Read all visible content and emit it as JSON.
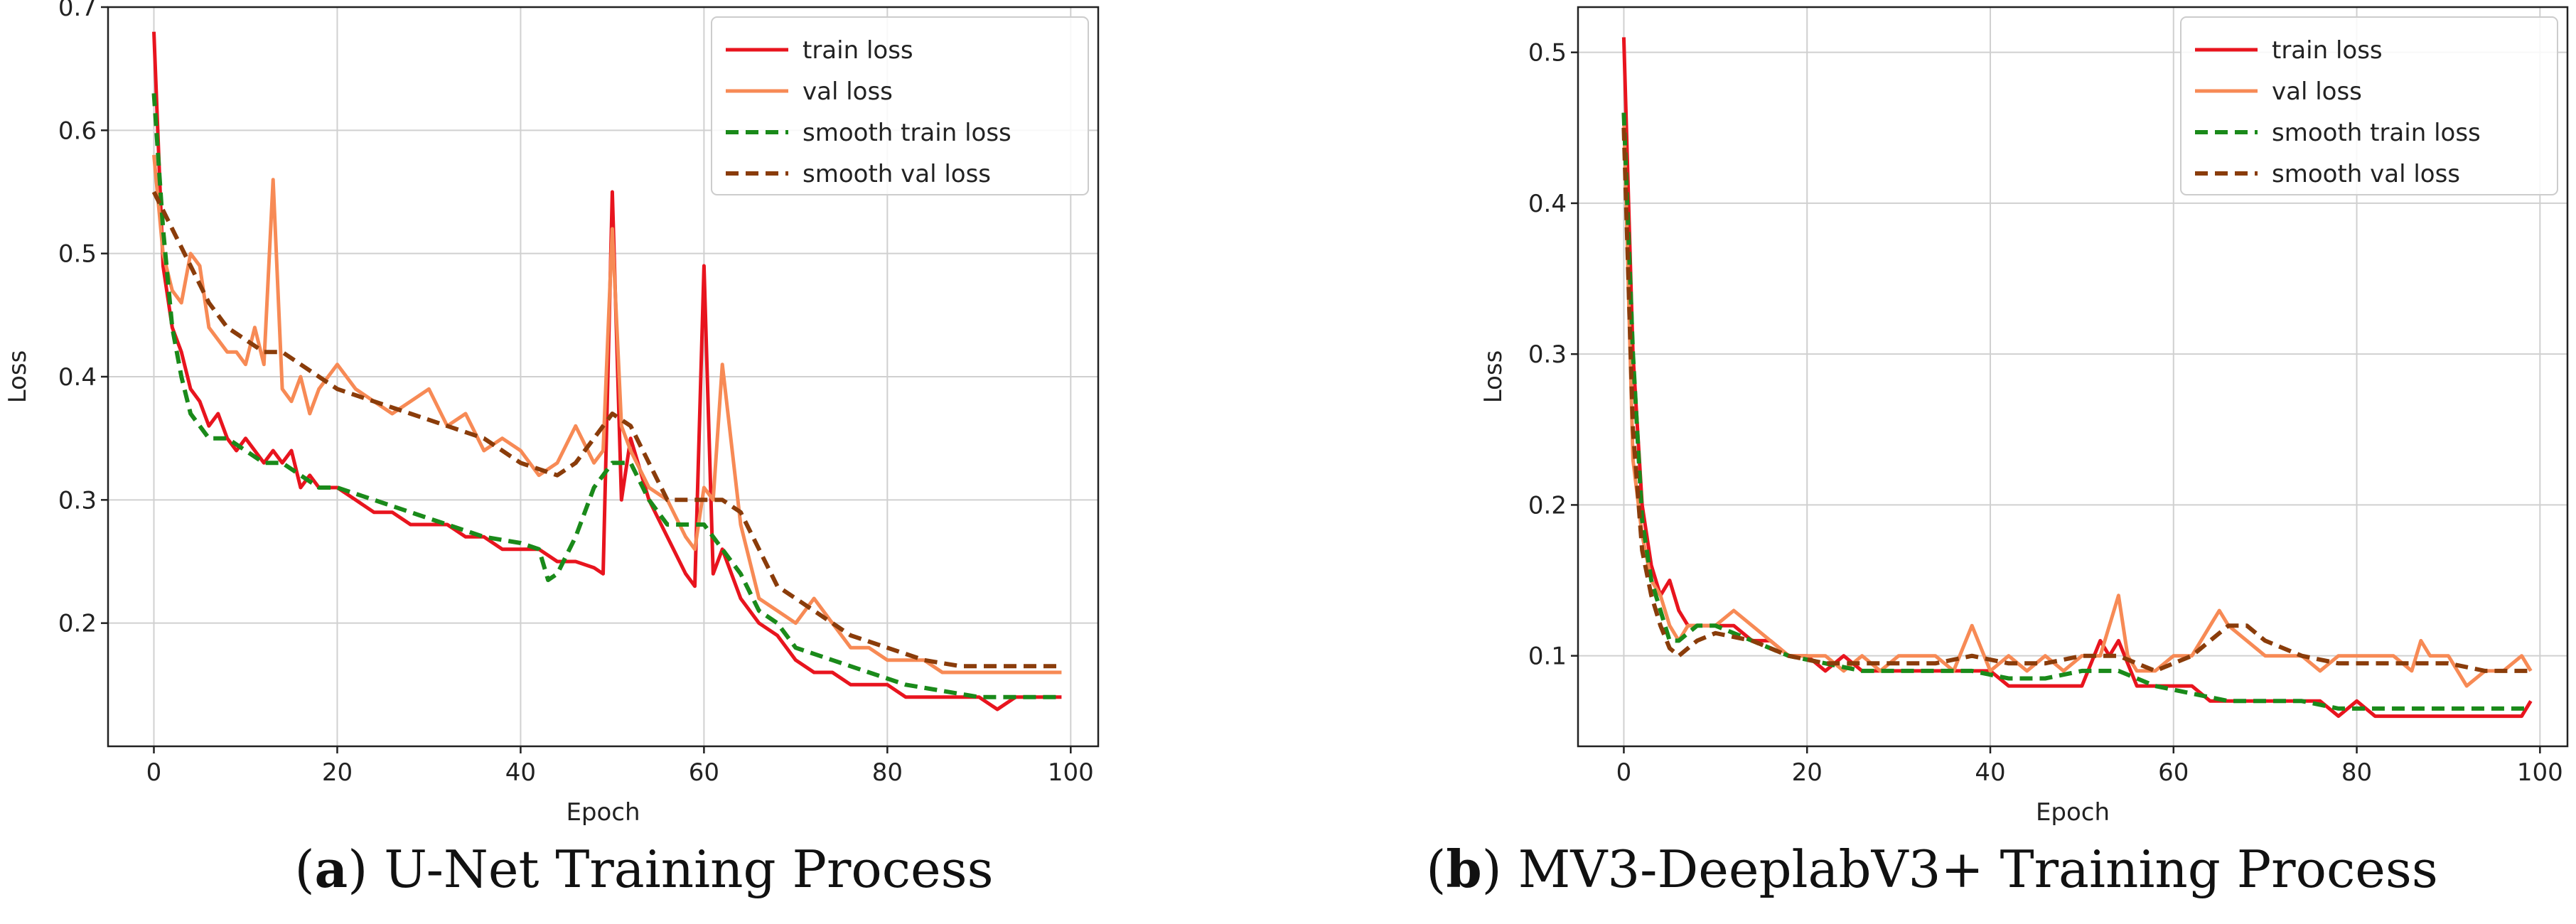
{
  "chart_data": [
    {
      "type": "line",
      "caption_letter": "a",
      "caption_text": "U-Net Training Process",
      "xlabel": "Epoch",
      "ylabel": "Loss",
      "xlim": [
        -5,
        103
      ],
      "ylim": [
        0.1,
        0.7
      ],
      "xticks": [
        0,
        20,
        40,
        60,
        80,
        100
      ],
      "yticks": [
        0.2,
        0.3,
        0.4,
        0.5,
        0.6,
        0.7
      ],
      "grid": true,
      "legend_position": "top-right",
      "series": [
        {
          "name": "train loss",
          "color": "#e8141e",
          "dash": "solid",
          "x": [
            0,
            1,
            2,
            3,
            4,
            5,
            6,
            7,
            8,
            9,
            10,
            11,
            12,
            13,
            14,
            15,
            16,
            17,
            18,
            19,
            20,
            22,
            24,
            26,
            28,
            30,
            32,
            34,
            36,
            38,
            40,
            42,
            44,
            46,
            48,
            49,
            50,
            51,
            52,
            54,
            56,
            58,
            59,
            60,
            61,
            62,
            64,
            66,
            68,
            70,
            72,
            74,
            76,
            78,
            80,
            82,
            84,
            86,
            88,
            90,
            92,
            94,
            96,
            98,
            99
          ],
          "values": [
            0.68,
            0.49,
            0.44,
            0.42,
            0.39,
            0.38,
            0.36,
            0.37,
            0.35,
            0.34,
            0.35,
            0.34,
            0.33,
            0.34,
            0.33,
            0.34,
            0.31,
            0.32,
            0.31,
            0.31,
            0.31,
            0.3,
            0.29,
            0.29,
            0.28,
            0.28,
            0.28,
            0.27,
            0.27,
            0.26,
            0.26,
            0.26,
            0.25,
            0.25,
            0.245,
            0.24,
            0.55,
            0.3,
            0.35,
            0.3,
            0.27,
            0.24,
            0.23,
            0.49,
            0.24,
            0.26,
            0.22,
            0.2,
            0.19,
            0.17,
            0.16,
            0.16,
            0.15,
            0.15,
            0.15,
            0.14,
            0.14,
            0.14,
            0.14,
            0.14,
            0.13,
            0.14,
            0.14,
            0.14,
            0.14
          ]
        },
        {
          "name": "val loss",
          "color": "#f78a55",
          "dash": "solid",
          "x": [
            0,
            1,
            2,
            3,
            4,
            5,
            6,
            7,
            8,
            9,
            10,
            11,
            12,
            13,
            14,
            15,
            16,
            17,
            18,
            19,
            20,
            22,
            24,
            26,
            28,
            30,
            32,
            34,
            36,
            38,
            40,
            42,
            44,
            46,
            48,
            49,
            50,
            51,
            52,
            54,
            56,
            58,
            59,
            60,
            61,
            62,
            64,
            66,
            68,
            70,
            72,
            74,
            76,
            78,
            80,
            82,
            84,
            86,
            88,
            90,
            92,
            94,
            96,
            98,
            99
          ],
          "values": [
            0.58,
            0.5,
            0.47,
            0.46,
            0.5,
            0.49,
            0.44,
            0.43,
            0.42,
            0.42,
            0.41,
            0.44,
            0.41,
            0.56,
            0.39,
            0.38,
            0.4,
            0.37,
            0.39,
            0.4,
            0.41,
            0.39,
            0.38,
            0.37,
            0.38,
            0.39,
            0.36,
            0.37,
            0.34,
            0.35,
            0.34,
            0.32,
            0.33,
            0.36,
            0.33,
            0.34,
            0.52,
            0.36,
            0.34,
            0.31,
            0.3,
            0.27,
            0.26,
            0.31,
            0.3,
            0.41,
            0.28,
            0.22,
            0.21,
            0.2,
            0.22,
            0.2,
            0.18,
            0.18,
            0.17,
            0.17,
            0.17,
            0.16,
            0.16,
            0.16,
            0.16,
            0.16,
            0.16,
            0.16,
            0.16
          ]
        },
        {
          "name": "smooth train loss",
          "color": "#1a8a1a",
          "dash": "dashed",
          "x": [
            0,
            1,
            2,
            3,
            4,
            5,
            6,
            8,
            10,
            12,
            14,
            16,
            18,
            20,
            24,
            28,
            32,
            36,
            40,
            42,
            43,
            44,
            46,
            48,
            50,
            52,
            54,
            56,
            58,
            60,
            62,
            64,
            66,
            68,
            70,
            74,
            78,
            82,
            86,
            90,
            94,
            99
          ],
          "values": [
            0.63,
            0.52,
            0.44,
            0.4,
            0.37,
            0.36,
            0.35,
            0.35,
            0.34,
            0.33,
            0.33,
            0.32,
            0.31,
            0.31,
            0.3,
            0.29,
            0.28,
            0.27,
            0.265,
            0.26,
            0.235,
            0.24,
            0.27,
            0.31,
            0.33,
            0.33,
            0.3,
            0.28,
            0.28,
            0.28,
            0.26,
            0.24,
            0.21,
            0.2,
            0.18,
            0.17,
            0.16,
            0.15,
            0.145,
            0.14,
            0.14,
            0.14
          ]
        },
        {
          "name": "smooth val loss",
          "color": "#8a3c0a",
          "dash": "dashed",
          "x": [
            0,
            2,
            4,
            6,
            8,
            10,
            12,
            14,
            16,
            18,
            20,
            24,
            28,
            32,
            36,
            40,
            44,
            46,
            48,
            50,
            52,
            54,
            56,
            58,
            60,
            62,
            64,
            66,
            68,
            72,
            76,
            80,
            84,
            88,
            92,
            96,
            99
          ],
          "values": [
            0.55,
            0.52,
            0.49,
            0.46,
            0.44,
            0.43,
            0.42,
            0.42,
            0.41,
            0.4,
            0.39,
            0.38,
            0.37,
            0.36,
            0.35,
            0.33,
            0.32,
            0.33,
            0.35,
            0.37,
            0.36,
            0.33,
            0.3,
            0.3,
            0.3,
            0.3,
            0.29,
            0.26,
            0.23,
            0.21,
            0.19,
            0.18,
            0.17,
            0.165,
            0.165,
            0.165,
            0.165
          ]
        }
      ]
    },
    {
      "type": "line",
      "caption_letter": "b",
      "caption_text": "MV3-DeeplabV3+ Training Process",
      "xlabel": "Epoch",
      "ylabel": "Loss",
      "xlim": [
        -5,
        103
      ],
      "ylim": [
        0.04,
        0.53
      ],
      "xticks": [
        0,
        20,
        40,
        60,
        80,
        100
      ],
      "yticks": [
        0.1,
        0.2,
        0.3,
        0.4,
        0.5
      ],
      "grid": true,
      "legend_position": "top-right",
      "series": [
        {
          "name": "train loss",
          "color": "#e8141e",
          "dash": "solid",
          "x": [
            0,
            1,
            2,
            3,
            4,
            5,
            6,
            7,
            8,
            10,
            12,
            14,
            16,
            18,
            20,
            22,
            24,
            26,
            28,
            30,
            32,
            34,
            36,
            38,
            40,
            42,
            44,
            46,
            48,
            50,
            52,
            53,
            54,
            56,
            58,
            60,
            62,
            64,
            66,
            68,
            70,
            72,
            74,
            76,
            78,
            80,
            82,
            84,
            86,
            88,
            90,
            92,
            94,
            96,
            98,
            99
          ],
          "values": [
            0.51,
            0.3,
            0.2,
            0.16,
            0.14,
            0.15,
            0.13,
            0.12,
            0.12,
            0.12,
            0.12,
            0.11,
            0.11,
            0.1,
            0.1,
            0.09,
            0.1,
            0.09,
            0.09,
            0.09,
            0.09,
            0.09,
            0.09,
            0.09,
            0.09,
            0.08,
            0.08,
            0.08,
            0.08,
            0.08,
            0.11,
            0.1,
            0.11,
            0.08,
            0.08,
            0.08,
            0.08,
            0.07,
            0.07,
            0.07,
            0.07,
            0.07,
            0.07,
            0.07,
            0.06,
            0.07,
            0.06,
            0.06,
            0.06,
            0.06,
            0.06,
            0.06,
            0.06,
            0.06,
            0.06,
            0.07
          ]
        },
        {
          "name": "val loss",
          "color": "#f78a55",
          "dash": "solid",
          "x": [
            0,
            1,
            2,
            3,
            4,
            5,
            6,
            7,
            8,
            10,
            12,
            14,
            16,
            18,
            20,
            22,
            24,
            26,
            28,
            30,
            32,
            34,
            36,
            38,
            40,
            42,
            44,
            46,
            48,
            50,
            52,
            54,
            55,
            56,
            58,
            60,
            62,
            64,
            65,
            66,
            68,
            70,
            72,
            74,
            76,
            78,
            80,
            82,
            84,
            86,
            87,
            88,
            90,
            92,
            94,
            96,
            98,
            99
          ],
          "values": [
            0.46,
            0.23,
            0.18,
            0.15,
            0.14,
            0.12,
            0.11,
            0.12,
            0.12,
            0.12,
            0.13,
            0.12,
            0.11,
            0.1,
            0.1,
            0.1,
            0.09,
            0.1,
            0.09,
            0.1,
            0.1,
            0.1,
            0.09,
            0.12,
            0.09,
            0.1,
            0.09,
            0.1,
            0.09,
            0.1,
            0.1,
            0.14,
            0.1,
            0.09,
            0.09,
            0.1,
            0.1,
            0.12,
            0.13,
            0.12,
            0.11,
            0.1,
            0.1,
            0.1,
            0.09,
            0.1,
            0.1,
            0.1,
            0.1,
            0.09,
            0.11,
            0.1,
            0.1,
            0.08,
            0.09,
            0.09,
            0.1,
            0.09
          ]
        },
        {
          "name": "smooth train loss",
          "color": "#1a8a1a",
          "dash": "dashed",
          "x": [
            0,
            1,
            2,
            3,
            4,
            5,
            6,
            8,
            10,
            14,
            18,
            22,
            26,
            30,
            34,
            38,
            42,
            46,
            50,
            54,
            58,
            62,
            66,
            70,
            74,
            78,
            82,
            86,
            90,
            94,
            99
          ],
          "values": [
            0.46,
            0.3,
            0.19,
            0.15,
            0.13,
            0.11,
            0.11,
            0.12,
            0.12,
            0.11,
            0.1,
            0.095,
            0.09,
            0.09,
            0.09,
            0.09,
            0.085,
            0.085,
            0.09,
            0.09,
            0.08,
            0.075,
            0.07,
            0.07,
            0.07,
            0.065,
            0.065,
            0.065,
            0.065,
            0.065,
            0.065
          ]
        },
        {
          "name": "smooth val loss",
          "color": "#8a3c0a",
          "dash": "dashed",
          "x": [
            0,
            1,
            2,
            3,
            4,
            5,
            6,
            8,
            10,
            14,
            18,
            22,
            26,
            30,
            34,
            38,
            42,
            46,
            50,
            54,
            58,
            62,
            64,
            66,
            68,
            70,
            74,
            78,
            82,
            86,
            90,
            94,
            99
          ],
          "values": [
            0.45,
            0.25,
            0.17,
            0.14,
            0.12,
            0.105,
            0.1,
            0.11,
            0.115,
            0.11,
            0.1,
            0.095,
            0.095,
            0.095,
            0.095,
            0.1,
            0.095,
            0.095,
            0.1,
            0.1,
            0.09,
            0.1,
            0.11,
            0.12,
            0.12,
            0.11,
            0.1,
            0.095,
            0.095,
            0.095,
            0.095,
            0.09,
            0.09
          ]
        }
      ]
    }
  ]
}
